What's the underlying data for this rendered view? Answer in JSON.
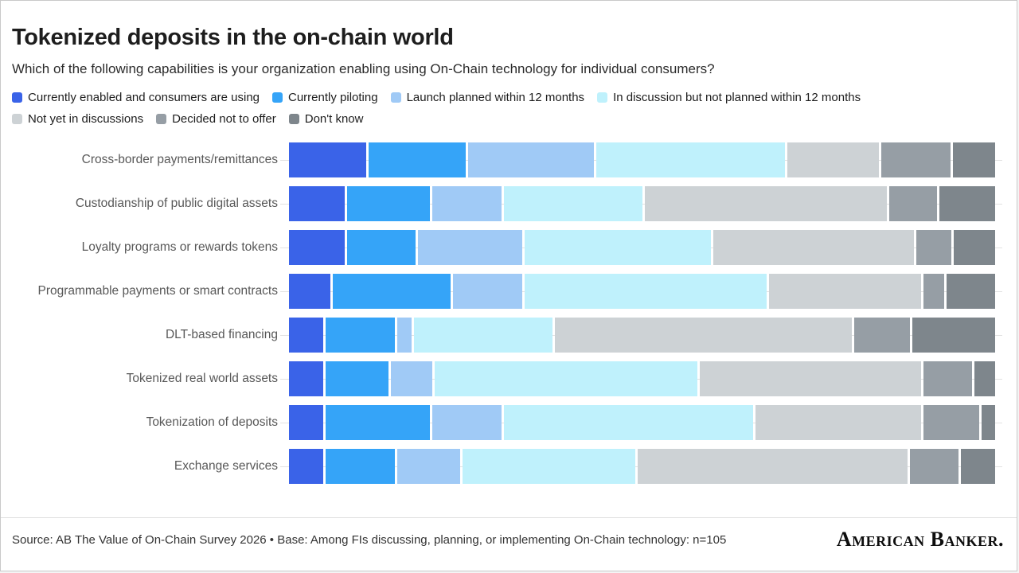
{
  "header": {
    "title": "Tokenized deposits in the on-chain world",
    "subtitle": "Which of the following capabilities is your organization enabling using On-Chain technology for individual consumers?"
  },
  "legend": [
    {
      "label": "Currently enabled and consumers are using",
      "color": "#3a63e8"
    },
    {
      "label": "Currently piloting",
      "color": "#35a4f8"
    },
    {
      "label": "Launch planned within 12 months",
      "color": "#a0caf6"
    },
    {
      "label": "In discussion but not planned within 12 months",
      "color": "#bff1fc"
    },
    {
      "label": "Not yet in discussions",
      "color": "#cdd2d5"
    },
    {
      "label": "Decided not to offer",
      "color": "#969ea5"
    },
    {
      "label": "Don't know",
      "color": "#7e868c"
    }
  ],
  "chart_data": {
    "type": "bar",
    "stacked": true,
    "orientation": "horizontal",
    "unit": "percent of respondents",
    "xlim": [
      0,
      100
    ],
    "grid": "row-guide-lines",
    "legend_position": "top",
    "value_labels": false,
    "title": "Tokenized deposits in the on-chain world",
    "categories": [
      "Cross-border payments/remittances",
      "Custodianship of public digital assets",
      "Loyalty programs or rewards tokens",
      "Programmable payments or smart contracts",
      "DLT-based financing",
      "Tokenized real world assets",
      "Tokenization of deposits",
      "Exchange services"
    ],
    "series": [
      {
        "name": "Currently enabled and consumers are using",
        "color": "#3a63e8",
        "values": [
          11,
          8,
          8,
          6,
          5,
          5,
          5,
          5
        ]
      },
      {
        "name": "Currently piloting",
        "color": "#35a4f8",
        "values": [
          14,
          12,
          10,
          17,
          10,
          9,
          15,
          10
        ]
      },
      {
        "name": "Launch planned within 12 months",
        "color": "#a0caf6",
        "values": [
          18,
          10,
          15,
          10,
          2,
          6,
          10,
          9
        ]
      },
      {
        "name": "In discussion but not planned within 12 months",
        "color": "#bff1fc",
        "values": [
          27,
          20,
          27,
          35,
          20,
          38,
          36,
          25
        ]
      },
      {
        "name": "Not yet in discussions",
        "color": "#cdd2d5",
        "values": [
          13,
          35,
          29,
          22,
          43,
          32,
          24,
          39
        ]
      },
      {
        "name": "Decided not to offer",
        "color": "#969ea5",
        "values": [
          10,
          7,
          5,
          3,
          8,
          7,
          8,
          7
        ]
      },
      {
        "name": "Don't know",
        "color": "#7e868c",
        "values": [
          6,
          8,
          6,
          7,
          12,
          3,
          2,
          5
        ]
      }
    ]
  },
  "footer": {
    "source": "Source: AB The Value of On-Chain Survey 2026 • Base: Among FIs discussing, planning, or implementing On-Chain technology: n=105",
    "logo": "American Banker."
  }
}
